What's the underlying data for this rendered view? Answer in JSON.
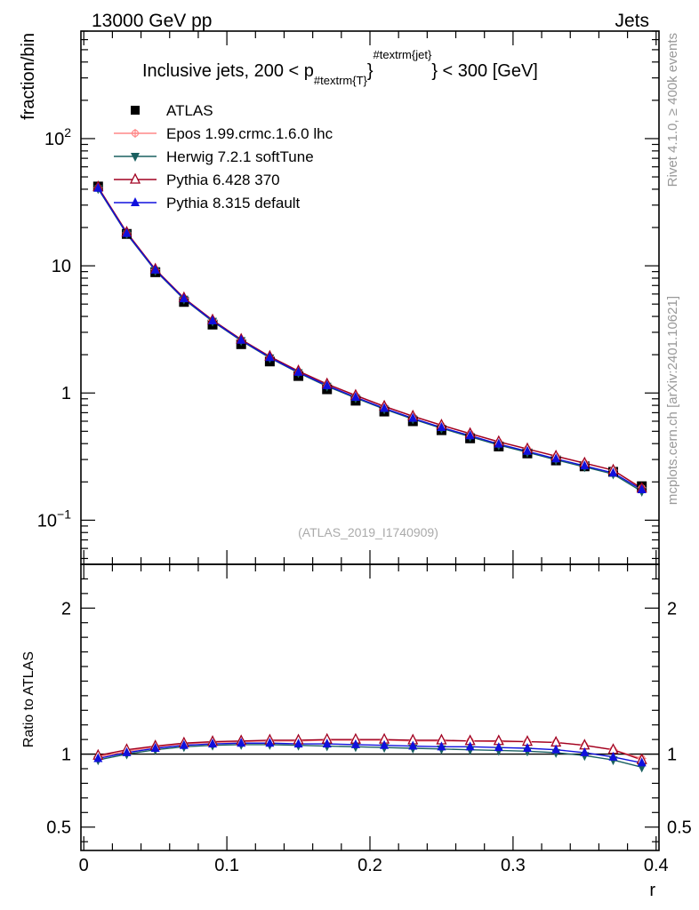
{
  "header": {
    "left": "13000 GeV pp",
    "right": "Jets"
  },
  "side_labels": {
    "rivet": "Rivet 4.1.0, ≥ 400k events",
    "mcplots": "mcplots.cern.ch [arXiv:2401.10621]"
  },
  "chart_data": {
    "type": "line",
    "title": "Inclusive jets, 200 < p_{#textrm{T}}^{#textrm{jet}} < 300 [GeV]",
    "title_parts": {
      "prefix": "Inclusive jets, 200 < p",
      "subscript": "#textrm{T}",
      "superscript": "#textrm{jet}",
      "suffix": "} < 300 [GeV]"
    },
    "analysis_id": "(ATLAS_2019_I1740909)",
    "xlabel": "r",
    "ylabel": "fraction/bin",
    "ratio_ylabel": "Ratio to ATLAS",
    "xlim": [
      -0.002,
      0.402
    ],
    "ylim": [
      0.045,
      700
    ],
    "yscale": "log",
    "ratio_ylim": [
      0.34,
      2.3
    ],
    "x_ticks": [
      "0",
      "0.1",
      "0.2",
      "0.3",
      "0.4"
    ],
    "y_ticks": [
      {
        "value": 100,
        "base": "10",
        "exp": "2"
      },
      {
        "value": 10,
        "base": "10",
        "exp": ""
      },
      {
        "value": 1,
        "base": "1",
        "exp": ""
      },
      {
        "value": 0.1,
        "base": "10",
        "exp": "−1"
      }
    ],
    "ratio_ticks": [
      "0.5",
      "1",
      "2"
    ],
    "x": [
      0.01,
      0.03,
      0.05,
      0.07,
      0.09,
      0.11,
      0.13,
      0.15,
      0.17,
      0.19,
      0.21,
      0.23,
      0.25,
      0.27,
      0.29,
      0.31,
      0.33,
      0.35,
      0.37,
      0.39
    ],
    "data": {
      "name": "ATLAS",
      "values": [
        42,
        17.8,
        8.9,
        5.2,
        3.45,
        2.42,
        1.77,
        1.36,
        1.07,
        0.87,
        0.715,
        0.6,
        0.51,
        0.44,
        0.38,
        0.335,
        0.295,
        0.265,
        0.24,
        0.185
      ]
    },
    "series": [
      {
        "name": "Epos 1.99.crmc.1.6.0 lhc",
        "color": "#ff8888",
        "marker": "cross",
        "ratio": [
          0.98,
          1.02,
          1.05,
          1.07,
          1.08,
          1.085,
          1.09,
          1.09,
          1.095,
          1.095,
          1.095,
          1.09,
          1.09,
          1.09,
          1.085,
          1.085,
          1.08,
          1.06,
          1.03,
          0.97
        ]
      },
      {
        "name": "Herwig 7.2.1 softTune",
        "color": "#1a6060",
        "marker": "triangle-down",
        "ratio": [
          0.96,
          1.0,
          1.03,
          1.05,
          1.06,
          1.065,
          1.065,
          1.06,
          1.055,
          1.05,
          1.045,
          1.04,
          1.035,
          1.03,
          1.025,
          1.02,
          1.01,
          0.99,
          0.96,
          0.91
        ]
      },
      {
        "name": "Pythia 6.428 370",
        "color": "#a00020",
        "marker": "triangle-open",
        "ratio": [
          0.99,
          1.03,
          1.055,
          1.075,
          1.085,
          1.09,
          1.095,
          1.095,
          1.1,
          1.1,
          1.1,
          1.095,
          1.095,
          1.09,
          1.09,
          1.085,
          1.08,
          1.06,
          1.03,
          0.96
        ]
      },
      {
        "name": "Pythia 8.315 default",
        "color": "#1010dd",
        "marker": "triangle-up",
        "ratio": [
          0.97,
          1.01,
          1.04,
          1.06,
          1.07,
          1.075,
          1.075,
          1.07,
          1.07,
          1.065,
          1.06,
          1.055,
          1.05,
          1.05,
          1.045,
          1.04,
          1.03,
          1.01,
          0.98,
          0.94
        ]
      }
    ],
    "legend_position": "top-left"
  }
}
